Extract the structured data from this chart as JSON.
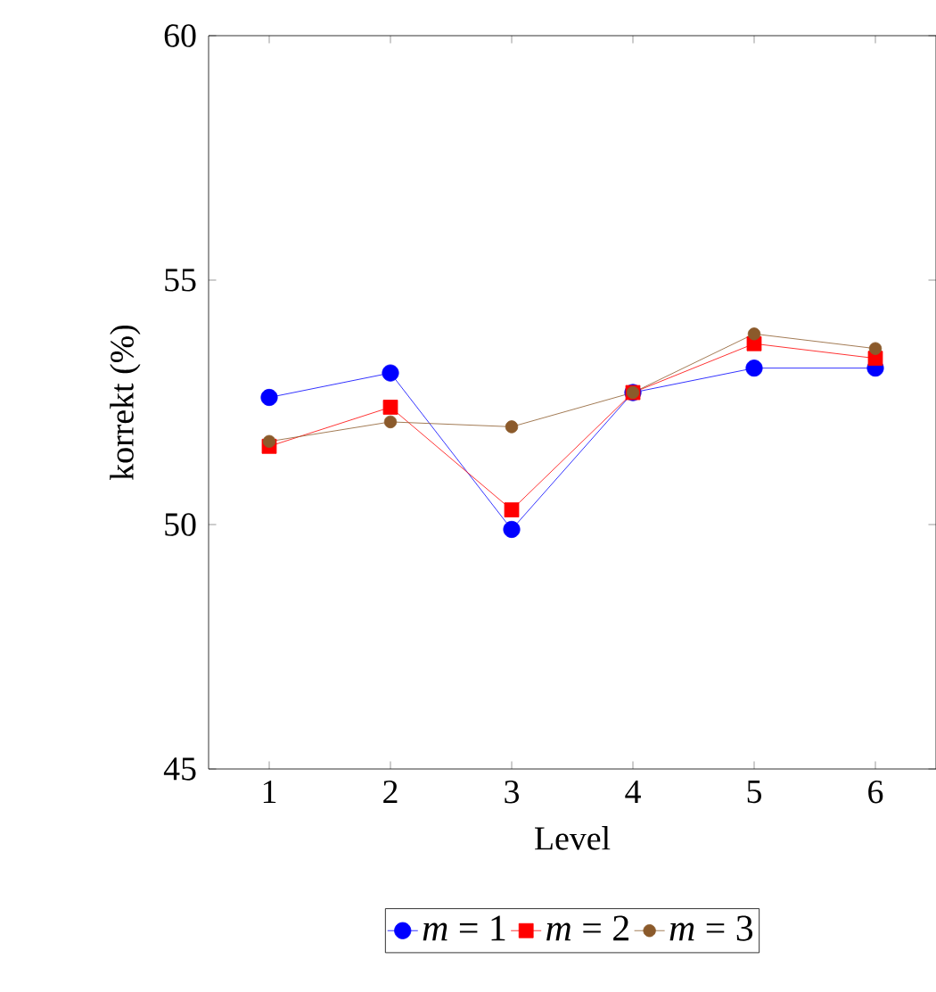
{
  "chart_data": {
    "type": "line",
    "xlabel": "Level",
    "ylabel": "korrekt (%)",
    "x": [
      1,
      2,
      3,
      4,
      5,
      6
    ],
    "xlim": [
      0.5,
      6.5
    ],
    "ylim": [
      45,
      60
    ],
    "xticks": [
      1,
      2,
      3,
      4,
      5,
      6
    ],
    "yticks": [
      45,
      50,
      55,
      60
    ],
    "legend": "bottom",
    "grid": false,
    "series": [
      {
        "name": "*m* = 1",
        "color": "#0000ff",
        "marker": "circle",
        "values": [
          52.6,
          53.1,
          49.9,
          52.7,
          53.2,
          53.2
        ]
      },
      {
        "name": "*m* = 2",
        "color": "#ff0000",
        "marker": "square",
        "values": [
          51.6,
          52.4,
          50.3,
          52.7,
          53.7,
          53.4
        ]
      },
      {
        "name": "*m* = 3",
        "color": "#8b5a2b",
        "marker": "circle",
        "values": [
          51.7,
          52.1,
          52.0,
          52.7,
          53.9,
          53.6
        ]
      }
    ]
  }
}
